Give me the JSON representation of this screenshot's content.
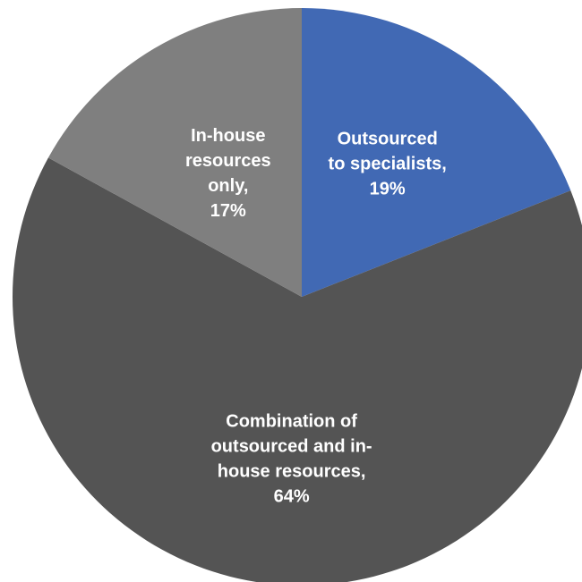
{
  "chart_data": {
    "type": "pie",
    "title": "",
    "slices": [
      {
        "name": "Outsourced to specialists",
        "value": 19,
        "color": "#4169B4",
        "label_lines": [
          "Outsourced",
          "to specialists,",
          "19%"
        ]
      },
      {
        "name": "Combination of outsourced and in-house resources",
        "value": 64,
        "color": "#545454",
        "label_lines": [
          "Combination of",
          "outsourced and in-",
          "house resources,",
          "64%"
        ]
      },
      {
        "name": "In-house resources only",
        "value": 17,
        "color": "#7F7F7F",
        "label_lines": [
          "In-house",
          "resources",
          "only,",
          "17%"
        ]
      }
    ],
    "start_angle": "12 o'clock",
    "direction": "clockwise",
    "legend": "none",
    "data_labels": "inside slices"
  }
}
